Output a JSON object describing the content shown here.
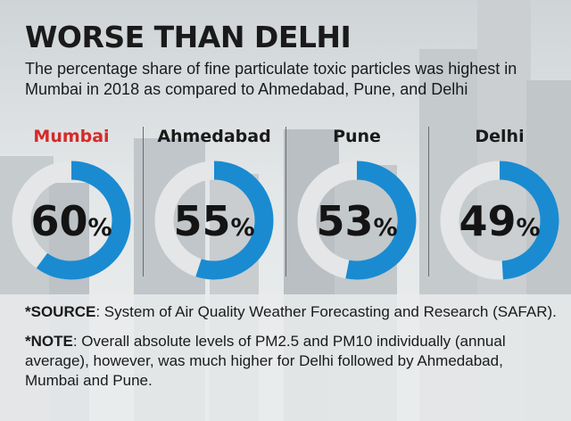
{
  "title": "WORSE THAN DELHI",
  "subtitle": "The percentage share of fine particulate toxic particles was highest in Mumbai in 2018 as compared to Ahmedabad, Pune, and Delhi",
  "source": {
    "label": "*SOURCE",
    "text": ": System of Air Quality Weather Forecasting and Research (SAFAR)."
  },
  "note": {
    "label": "*NOTE",
    "text": ": Overall absolute levels of PM2.5 and PM10 individually (annual average), however, was much higher for Delhi followed by Ahmedabad, Mumbai and Pune."
  },
  "colors": {
    "accent": "#1a8bd1",
    "track": "#e4e6e7",
    "highlight": "#d42a2a"
  },
  "chart_data": {
    "type": "pie",
    "unit": "%",
    "categories": [
      "Mumbai",
      "Ahmedabad",
      "Pune",
      "Delhi"
    ],
    "values": [
      60,
      55,
      53,
      49
    ],
    "highlight": "Mumbai",
    "labels": [
      "60",
      "55",
      "53",
      "49"
    ]
  }
}
